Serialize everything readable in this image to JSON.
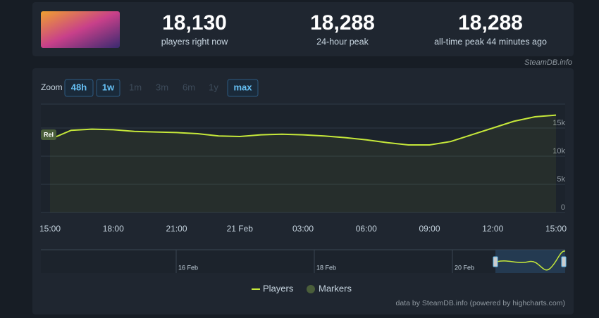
{
  "stats": [
    {
      "value": "18,130",
      "label": "players right now"
    },
    {
      "value": "18,288",
      "label": "24-hour peak"
    },
    {
      "value": "18,288",
      "label": "all-time peak 44 minutes ago"
    }
  ],
  "source": "SteamDB.info",
  "zoom": {
    "label": "Zoom",
    "buttons": [
      "48h",
      "1w",
      "1m",
      "3m",
      "6m",
      "1y",
      "max"
    ]
  },
  "chart_data": {
    "type": "line",
    "categories": [
      "15:00",
      null,
      null,
      "18:00",
      null,
      null,
      "21:00",
      null,
      null,
      "21 Feb",
      null,
      null,
      "03:00",
      null,
      null,
      "06:00",
      null,
      null,
      "09:00",
      null,
      null,
      "12:00",
      null,
      null,
      "15:00"
    ],
    "series": [
      {
        "name": "Players",
        "color": "#c6e83a",
        "values": [
          13000,
          14600,
          14800,
          14700,
          14400,
          14300,
          14200,
          14000,
          13600,
          13500,
          13800,
          13900,
          13800,
          13600,
          13300,
          12900,
          12400,
          12000,
          12000,
          12600,
          13800,
          15000,
          16200,
          17000,
          17300
        ]
      }
    ],
    "markers": {
      "name": "Markers",
      "color": "#4a5e3a"
    },
    "annotations": [
      "Rel"
    ],
    "ylim": [
      0,
      19250
    ],
    "yticks": [
      0,
      {
        "value": 5000,
        "label": "5k"
      },
      {
        "value": 10000,
        "label": "10k"
      },
      {
        "value": 15000,
        "label": "15k"
      }
    ],
    "grid": true,
    "navigator": {
      "labels": [
        "16 Feb",
        "18 Feb",
        "20 Feb"
      ]
    },
    "credits": "data by SteamDB.info (powered by highcharts.com)"
  }
}
